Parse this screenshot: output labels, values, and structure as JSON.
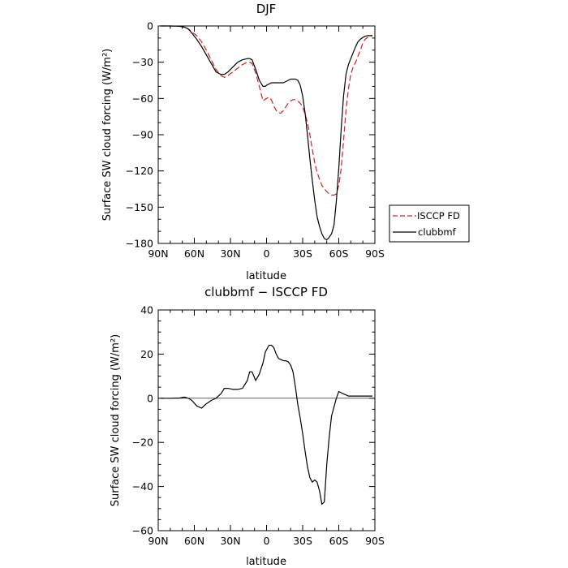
{
  "chart_data": [
    {
      "type": "line",
      "title": "DJF",
      "xlabel": "latitude",
      "ylabel": "Surface SW cloud forcing (W/m²)",
      "xlim": [
        90,
        -90
      ],
      "ylim": [
        -180,
        0
      ],
      "x_tick_values": [
        90,
        60,
        30,
        0,
        -30,
        -60,
        -90
      ],
      "x_tick_labels": [
        "90N",
        "60N",
        "30N",
        "0",
        "30S",
        "60S",
        "90S"
      ],
      "y_tick_values": [
        0,
        -30,
        -60,
        -90,
        -120,
        -150,
        -180
      ],
      "y_tick_labels": [
        "0",
        "−30",
        "−60",
        "−90",
        "−120",
        "−150",
        "−180"
      ],
      "legend": {
        "placement": "right"
      },
      "series": [
        {
          "name": "ISCCP FD",
          "color": "#e31a1c",
          "style": "dashed",
          "x": [
            88,
            80,
            72,
            68,
            65,
            62,
            58,
            54,
            50,
            46,
            42,
            38,
            35,
            32,
            28,
            24,
            20,
            16,
            14,
            12,
            9,
            6,
            3,
            0,
            -2,
            -4,
            -6,
            -8,
            -10,
            -12,
            -14,
            -16,
            -18,
            -20,
            -22,
            -24,
            -26,
            -28,
            -30,
            -32,
            -34,
            -36,
            -38,
            -40,
            -42,
            -44,
            -46,
            -48,
            -50,
            -52,
            -54,
            -56,
            -58,
            -60,
            -62,
            -64,
            -66,
            -68,
            -70,
            -72,
            -74,
            -76,
            -78,
            -80,
            -82,
            -84,
            -86,
            -88
          ],
          "y": [
            0,
            0,
            -0.3,
            -1,
            -2.5,
            -5,
            -8,
            -13,
            -20,
            -28,
            -36,
            -41,
            -42.5,
            -41,
            -38,
            -35,
            -32,
            -30,
            -30,
            -31,
            -39,
            -50,
            -62,
            -60,
            -59,
            -61,
            -66,
            -70,
            -72,
            -72,
            -70,
            -67,
            -64,
            -62,
            -61,
            -61,
            -62,
            -64,
            -67,
            -73,
            -80,
            -90,
            -102,
            -113,
            -121,
            -127,
            -132,
            -135,
            -137,
            -139,
            -140,
            -140,
            -139,
            -132,
            -118,
            -95,
            -70,
            -52,
            -40,
            -34,
            -30,
            -25,
            -20,
            -14,
            -11,
            -9.5,
            -8.5,
            -8
          ]
        },
        {
          "name": "clubbmf",
          "color": "#000000",
          "style": "solid",
          "x": [
            88,
            80,
            72,
            68,
            65,
            62,
            58,
            54,
            50,
            46,
            42,
            38,
            35,
            32,
            28,
            24,
            20,
            16,
            14,
            12,
            9,
            6,
            3,
            1,
            0,
            -2,
            -4,
            -6,
            -8,
            -10,
            -12,
            -14,
            -16,
            -18,
            -20,
            -22,
            -24,
            -26,
            -28,
            -30,
            -32,
            -34,
            -36,
            -38,
            -40,
            -42,
            -44,
            -46,
            -48,
            -50,
            -52,
            -54,
            -56,
            -58,
            -60,
            -62,
            -64,
            -66,
            -68,
            -70,
            -72,
            -74,
            -76,
            -78,
            -80,
            -82,
            -84,
            -86,
            -88
          ],
          "y": [
            0,
            0,
            -0.3,
            -1,
            -2.5,
            -6,
            -11,
            -17,
            -24,
            -31,
            -38,
            -40,
            -40,
            -38,
            -34,
            -30,
            -28,
            -27,
            -27,
            -28,
            -36,
            -45,
            -50,
            -50,
            -49,
            -48,
            -47,
            -47,
            -47,
            -47,
            -47,
            -47,
            -46,
            -45,
            -44,
            -44,
            -44,
            -45,
            -49,
            -58,
            -72,
            -90,
            -110,
            -128,
            -144,
            -158,
            -166,
            -172,
            -176,
            -177,
            -175,
            -172,
            -165,
            -145,
            -118,
            -85,
            -58,
            -40,
            -32,
            -27,
            -22,
            -17,
            -13,
            -11,
            -9.5,
            -8.5,
            -8,
            -8,
            -8
          ]
        }
      ]
    },
    {
      "type": "line",
      "title": "clubbmf − ISCCP FD",
      "xlabel": "latitude",
      "ylabel": "Surface SW cloud forcing (W/m²)",
      "xlim": [
        90,
        -90
      ],
      "ylim": [
        -60,
        40
      ],
      "x_tick_values": [
        90,
        60,
        30,
        0,
        -30,
        -60,
        -90
      ],
      "x_tick_labels": [
        "90N",
        "60N",
        "30N",
        "0",
        "30S",
        "60S",
        "90S"
      ],
      "y_tick_values": [
        40,
        20,
        0,
        -20,
        -40,
        -60
      ],
      "y_tick_labels": [
        "40",
        "20",
        "0",
        "−20",
        "−40",
        "−60"
      ],
      "series": [
        {
          "color": "#000000",
          "style": "solid",
          "x": [
            88,
            80,
            72,
            68,
            65,
            62,
            58,
            54,
            50,
            46,
            42,
            38,
            35,
            32,
            28,
            24,
            20,
            16,
            14,
            12,
            9,
            6,
            3,
            1,
            0,
            -2,
            -4,
            -6,
            -8,
            -10,
            -12,
            -14,
            -16,
            -18,
            -20,
            -22,
            -24,
            -26,
            -28,
            -30,
            -32,
            -34,
            -36,
            -38,
            -40,
            -42,
            -44,
            -46,
            -48,
            -50,
            -52,
            -54,
            -56,
            -58,
            -60,
            -62,
            -64,
            -66,
            -68,
            -70,
            -72,
            -74,
            -76,
            -78,
            -80,
            -82,
            -84,
            -86,
            -88
          ],
          "y": [
            0,
            0,
            0.1,
            0.5,
            0,
            -1,
            -3.5,
            -4.5,
            -2.5,
            -1,
            0,
            2,
            4.5,
            4.5,
            4,
            4,
            4.5,
            8,
            12,
            12,
            8,
            11,
            16,
            21,
            22,
            24,
            24,
            23,
            20,
            18,
            17.5,
            17,
            17,
            16.5,
            15,
            12,
            5,
            -3,
            -9,
            -16,
            -24,
            -31,
            -36,
            -38,
            -37,
            -38,
            -42,
            -48,
            -47,
            -30,
            -18,
            -8,
            -4,
            0,
            3,
            2.5,
            2,
            1.5,
            1,
            1,
            1,
            1,
            1,
            1,
            1,
            1,
            1,
            1,
            1
          ]
        }
      ]
    }
  ]
}
